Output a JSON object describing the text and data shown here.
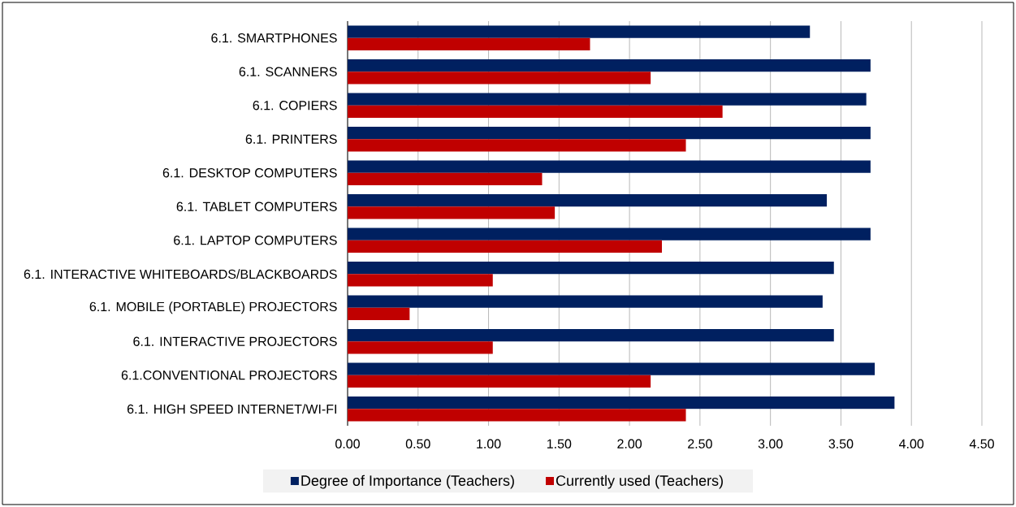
{
  "chart_data": {
    "type": "bar",
    "orientation": "horizontal",
    "categories": [
      "6.1. SMARTPHONES",
      "6.1. SCANNERS",
      "6.1. COPIERS",
      "6.1. PRINTERS",
      "6.1. DESKTOP COMPUTERS",
      "6.1. TABLET COMPUTERS",
      "6.1. LAPTOP COMPUTERS",
      "6.1. INTERACTIVE WHITEBOARDS/BLACKBOARDS",
      "6.1. MOBILE (PORTABLE) PROJECTORS",
      "6.1. INTERACTIVE PROJECTORS",
      "6.1.CONVENTIONAL PROJECTORS",
      "6.1. HIGH SPEED INTERNET/WI-FI"
    ],
    "series": [
      {
        "name": "Degree of Importance (Teachers)",
        "color": "#002060",
        "values": [
          3.28,
          3.71,
          3.68,
          3.71,
          3.71,
          3.4,
          3.71,
          3.45,
          3.37,
          3.45,
          3.74,
          3.88
        ]
      },
      {
        "name": "Currently used (Teachers)",
        "color": "#c00000",
        "values": [
          1.72,
          2.15,
          2.66,
          2.4,
          1.38,
          1.47,
          2.23,
          1.03,
          0.44,
          1.03,
          2.15,
          2.4
        ]
      }
    ],
    "xlim": [
      0,
      4.5
    ],
    "xticks": [
      {
        "value": 0,
        "label": "0.00"
      },
      {
        "value": 0.5,
        "label": "0.50"
      },
      {
        "value": 1,
        "label": "1.00"
      },
      {
        "value": 1.5,
        "label": "1.50"
      },
      {
        "value": 2,
        "label": "2.00"
      },
      {
        "value": 2.5,
        "label": "2.50"
      },
      {
        "value": 3,
        "label": "3.00"
      },
      {
        "value": 3.5,
        "label": "3.50"
      },
      {
        "value": 4,
        "label": "4.00"
      },
      {
        "value": 4.5,
        "label": "4.50"
      }
    ],
    "grid": "x",
    "legend": "bottom"
  }
}
